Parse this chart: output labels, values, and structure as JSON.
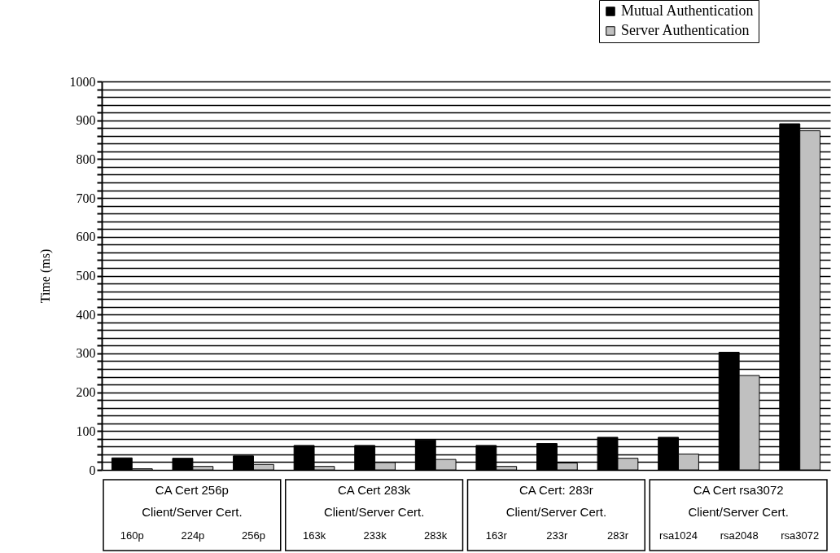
{
  "chart_data": {
    "type": "bar",
    "ylabel": "Time (ms)",
    "categories": [
      "160p",
      "224p",
      "256p",
      "163k",
      "233k",
      "283k",
      "163r",
      "233r",
      "283r",
      "rsa1024",
      "rsa2048",
      "rsa3072"
    ],
    "series": [
      {
        "name": "Mutual Authentication",
        "color": "#000000",
        "values": [
          31,
          30,
          36,
          63,
          63,
          77,
          63,
          68,
          84,
          84,
          303,
          891
        ]
      },
      {
        "name": "Server Authentication",
        "color": "#c0c0c0",
        "values": [
          3,
          9,
          14,
          9,
          19,
          27,
          9,
          18,
          30,
          41,
          243,
          873
        ]
      }
    ],
    "ylim": [
      0,
      1000
    ],
    "yticks": [
      0,
      {
        "value": 20,
        "label": null
      },
      {
        "value": 40,
        "label": null
      },
      {
        "value": 60,
        "label": null
      },
      {
        "value": 80,
        "label": null
      },
      100,
      {
        "value": 120,
        "label": null
      },
      {
        "value": 140,
        "label": null
      },
      {
        "value": 160,
        "label": null
      },
      {
        "value": 180,
        "label": null
      },
      200,
      {
        "value": 220,
        "label": null
      },
      {
        "value": 240,
        "label": null
      },
      {
        "value": 260,
        "label": null
      },
      {
        "value": 280,
        "label": null
      },
      300,
      {
        "value": 320,
        "label": null
      },
      {
        "value": 340,
        "label": null
      },
      {
        "value": 360,
        "label": null
      },
      {
        "value": 380,
        "label": null
      },
      400,
      {
        "value": 420,
        "label": null
      },
      {
        "value": 440,
        "label": null
      },
      {
        "value": 460,
        "label": null
      },
      {
        "value": 480,
        "label": null
      },
      500,
      {
        "value": 520,
        "label": null
      },
      {
        "value": 540,
        "label": null
      },
      {
        "value": 560,
        "label": null
      },
      {
        "value": 580,
        "label": null
      },
      600,
      {
        "value": 620,
        "label": null
      },
      {
        "value": 640,
        "label": null
      },
      {
        "value": 660,
        "label": null
      },
      {
        "value": 680,
        "label": null
      },
      700,
      {
        "value": 720,
        "label": null
      },
      {
        "value": 740,
        "label": null
      },
      {
        "value": 760,
        "label": null
      },
      {
        "value": 780,
        "label": null
      },
      800,
      {
        "value": 820,
        "label": null
      },
      {
        "value": 840,
        "label": null
      },
      {
        "value": 860,
        "label": null
      },
      {
        "value": 880,
        "label": null
      },
      900,
      {
        "value": 920,
        "label": null
      },
      {
        "value": 940,
        "label": null
      },
      {
        "value": 960,
        "label": null
      },
      {
        "value": 980,
        "label": null
      },
      1000
    ],
    "grid": "y",
    "legend": "top right",
    "annotations": [
      "CA Cert 256p\nClient/Server Cert.",
      "CA Cert 283k\nClient/Server Cert.",
      "CA Cert: 283r\nClient/Server Cert.",
      "CA Cert rsa3072\nClient/Server Cert."
    ]
  }
}
